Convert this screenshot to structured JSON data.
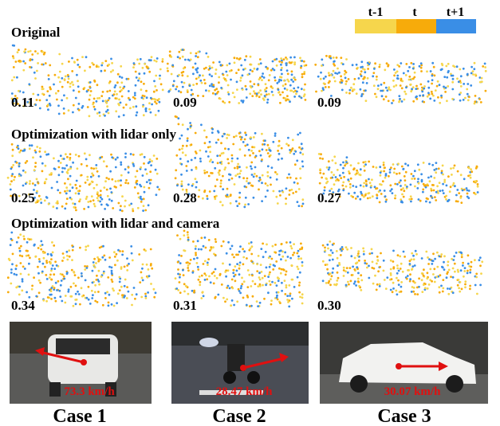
{
  "legend": [
    "t-1",
    "t",
    "t+1"
  ],
  "rows": [
    {
      "title": "Original",
      "scores": [
        "0.11",
        "0.09",
        "0.09"
      ]
    },
    {
      "title": "Optimization with lidar only",
      "scores": [
        "0.25",
        "0.28",
        "0.27"
      ]
    },
    {
      "title": "Optimization with lidar and camera",
      "scores": [
        "0.34",
        "0.31",
        "0.30"
      ]
    }
  ],
  "cases": [
    {
      "label": "Case 1",
      "speed": "73.3 km/h"
    },
    {
      "label": "Case 2",
      "speed": "28.47 km/h"
    },
    {
      "label": "Case 3",
      "speed": "30.07 km/h"
    }
  ]
}
